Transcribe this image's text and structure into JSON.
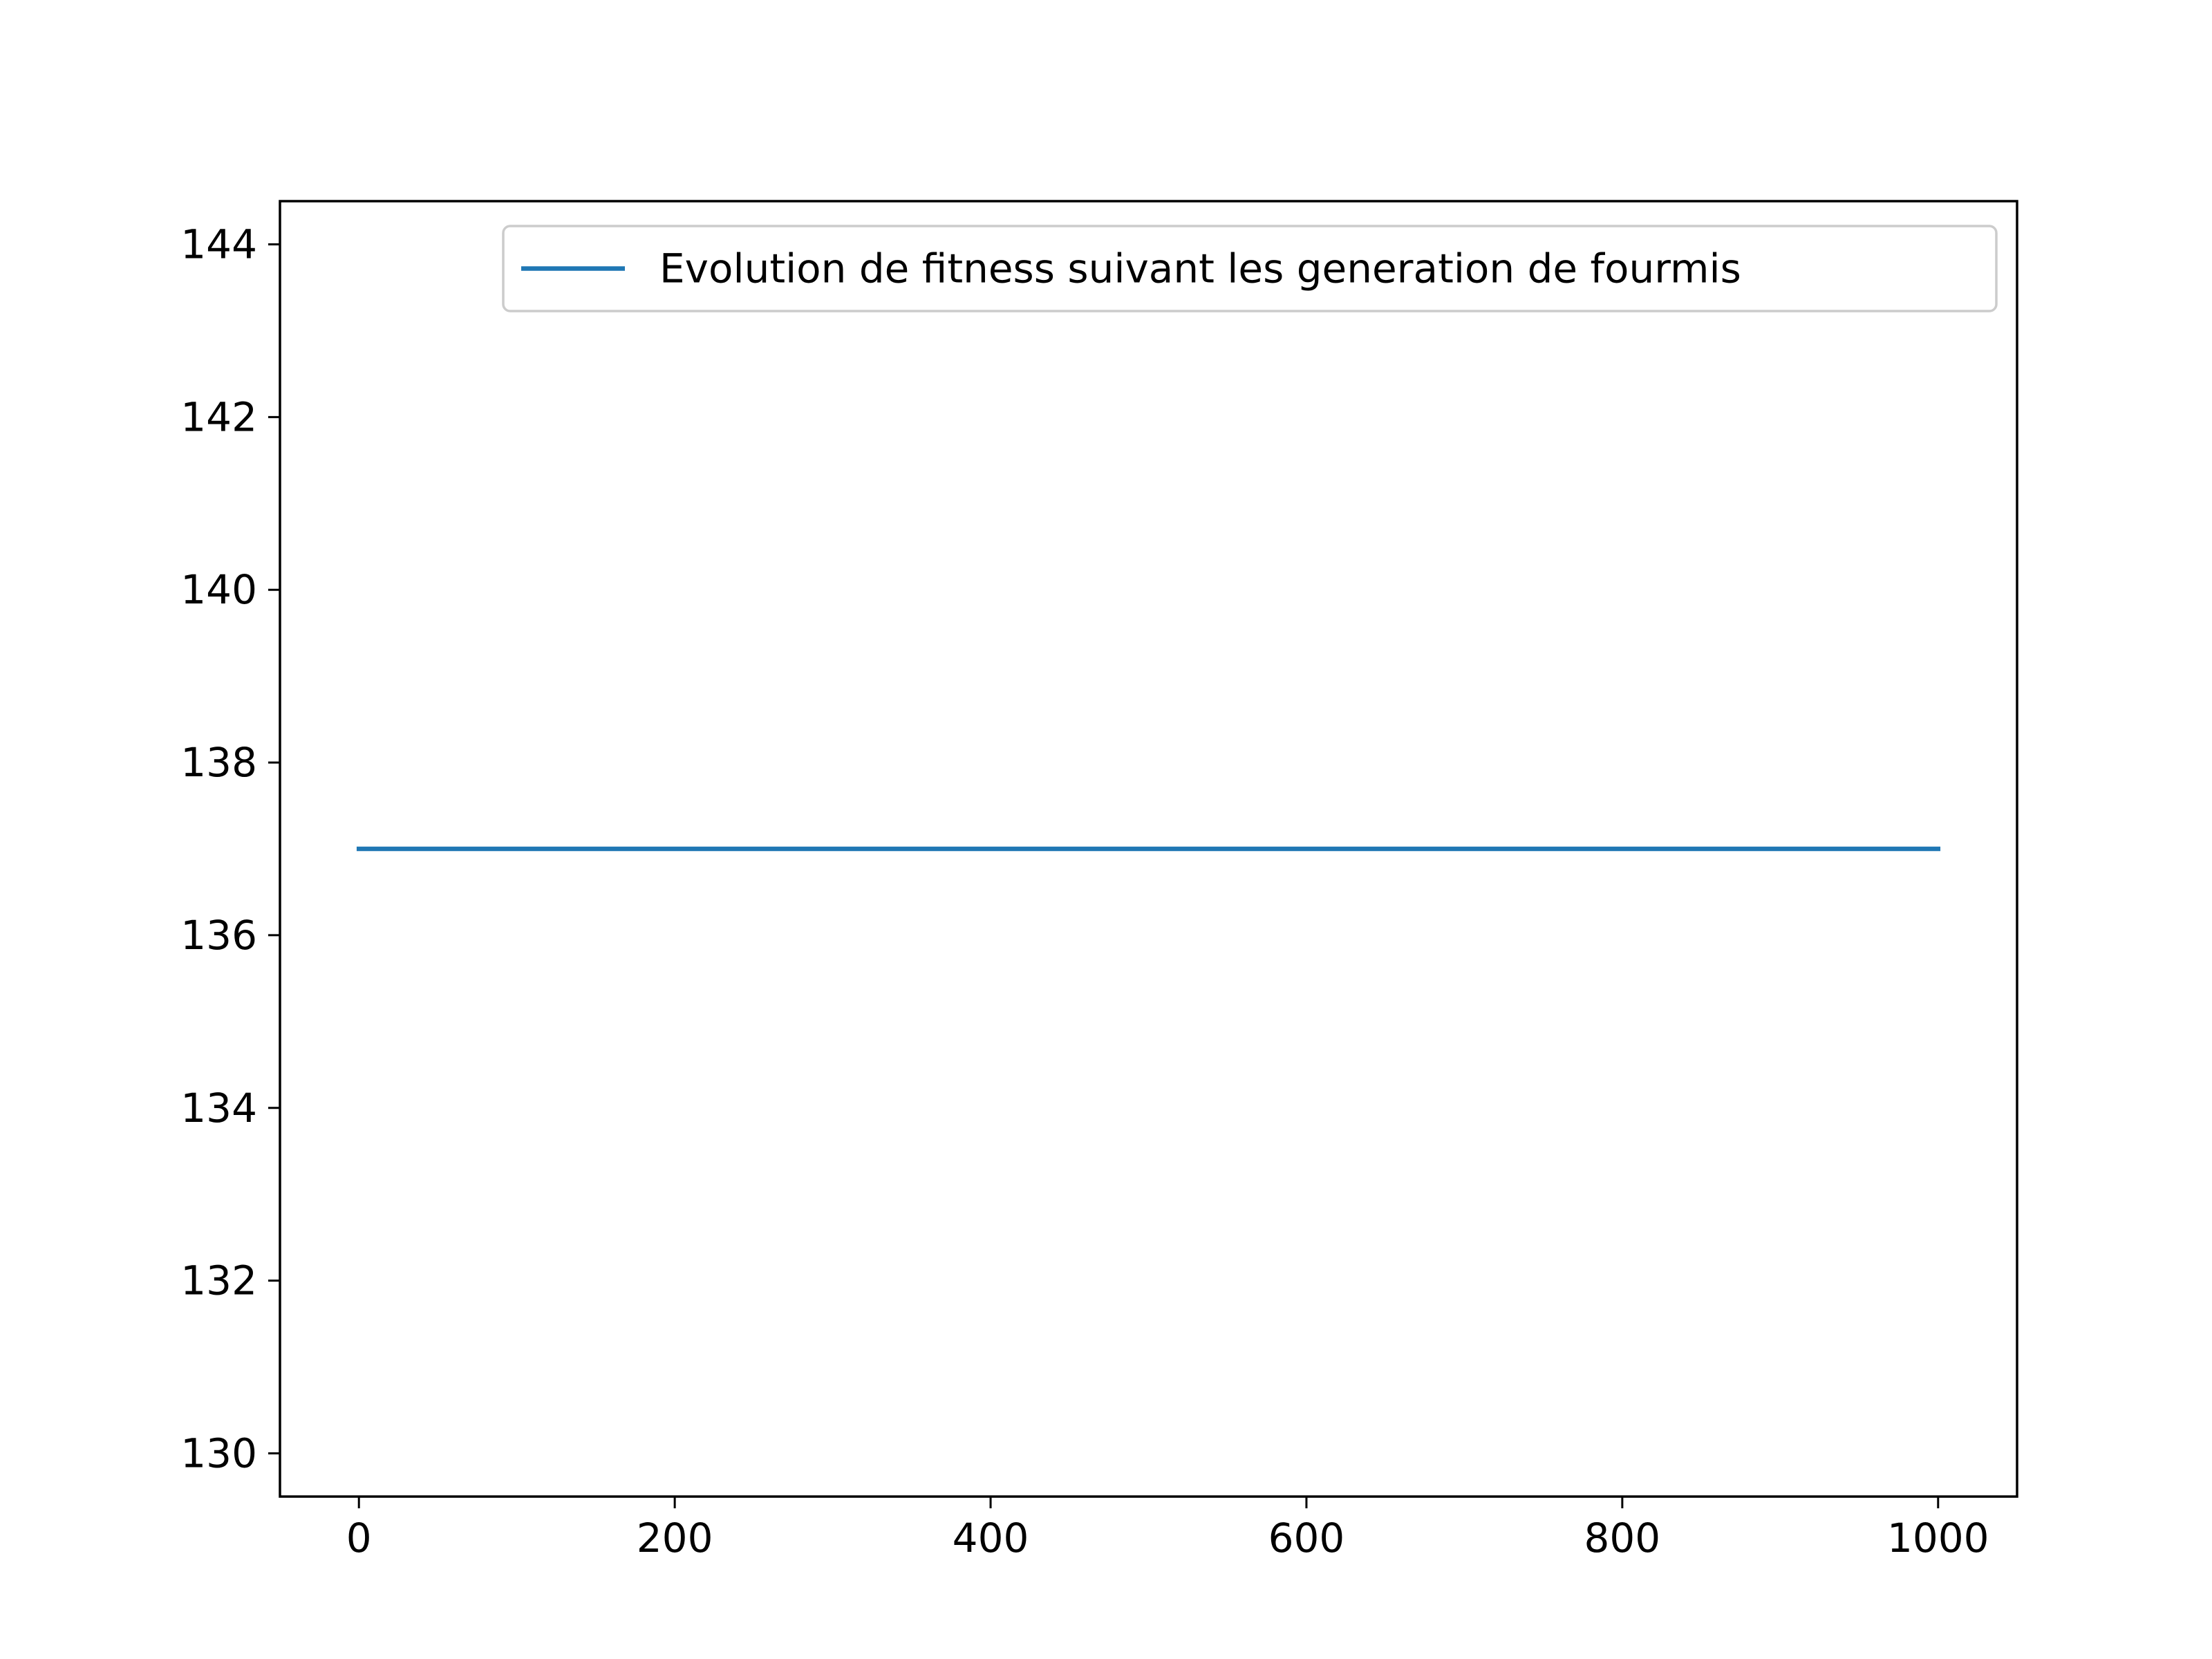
{
  "chart_data": {
    "type": "line",
    "title": "",
    "xlabel": "",
    "ylabel": "",
    "xlim": [
      -50,
      1050
    ],
    "ylim": [
      129.5,
      144.5
    ],
    "xticks": [
      0,
      200,
      400,
      600,
      800,
      1000
    ],
    "yticks": [
      130,
      132,
      134,
      136,
      138,
      140,
      142,
      144
    ],
    "grid": false,
    "legend_position": "top-right",
    "series": [
      {
        "name": "Evolution de fitness suivant les generation de fourmis",
        "color": "#1f77b4",
        "x": [
          0,
          1000
        ],
        "y": [
          137,
          137
        ]
      }
    ]
  }
}
